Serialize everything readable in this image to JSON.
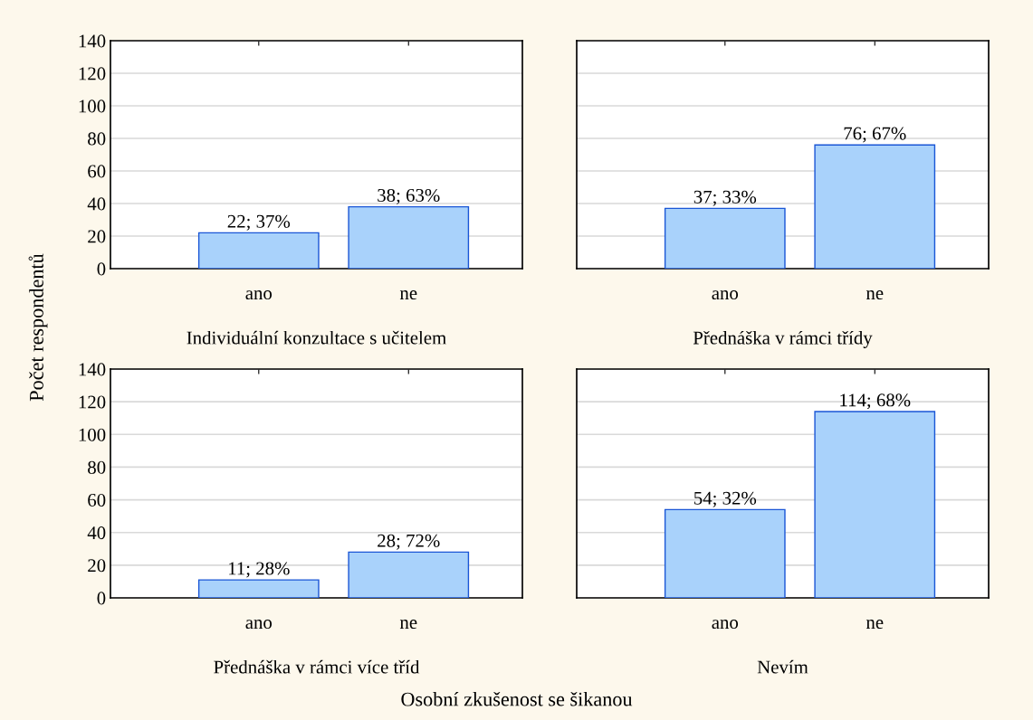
{
  "chart_data": [
    {
      "type": "bar",
      "xlabel": "Individuální konzultace s učitelem",
      "ylabel": "Počet respondentů",
      "categories": [
        "ano",
        "ne"
      ],
      "values": [
        22,
        38
      ],
      "value_labels": [
        "22; 37%",
        "38; 63%"
      ],
      "color": "#a9d2fb",
      "ylim": [
        0,
        140
      ],
      "yticks": [
        0,
        20,
        40,
        60,
        80,
        100,
        120,
        140
      ],
      "grid": "y"
    },
    {
      "type": "bar",
      "xlabel": "Přednáška v rámci třídy",
      "categories": [
        "ano",
        "ne"
      ],
      "values": [
        37,
        76
      ],
      "value_labels": [
        "37; 33%",
        "76; 67%"
      ],
      "color": "#a9d2fb",
      "ylim": [
        0,
        140
      ],
      "yticks": [
        0,
        20,
        40,
        60,
        80,
        100,
        120,
        140
      ],
      "grid": "y",
      "tick_labels": "x"
    },
    {
      "type": "bar",
      "xlabel": "Přednáška v rámci více tříd",
      "categories": [
        "ano",
        "ne"
      ],
      "values": [
        11,
        28
      ],
      "value_labels": [
        "11; 28%",
        "28; 72%"
      ],
      "color": "#a9d2fb",
      "ylim": [
        0,
        140
      ],
      "yticks": [
        0,
        20,
        40,
        60,
        80,
        100,
        120,
        140
      ],
      "grid": "y",
      "annotations": [
        "Osobní zkušenost se šikanou"
      ]
    },
    {
      "type": "bar",
      "xlabel": "Nevím",
      "categories": [
        "ano",
        "ne"
      ],
      "values": [
        54,
        114
      ],
      "value_labels": [
        "54; 32%",
        "114; 68%"
      ],
      "color": "#a9d2fb",
      "ylim": [
        0,
        140
      ],
      "yticks": [
        0,
        20,
        40,
        60,
        80,
        100,
        120,
        140
      ],
      "grid": "y",
      "tick_labels": "x"
    }
  ]
}
